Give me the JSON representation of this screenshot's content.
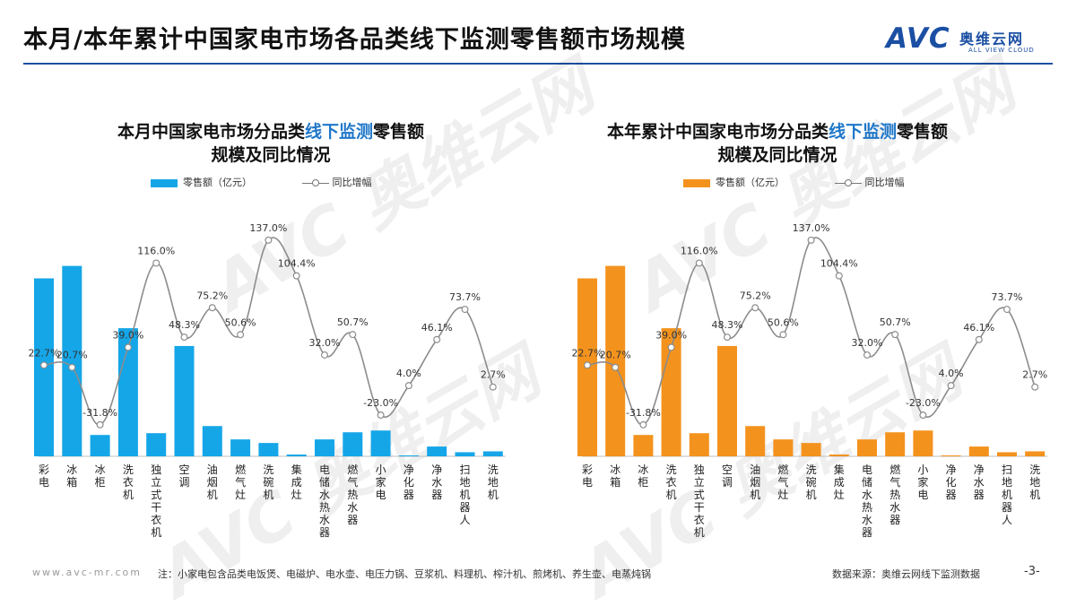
{
  "page": {
    "title": "本月/本年累计中国家电市场各品类线下监测零售额市场规模",
    "logo_text": "AVC",
    "logo_cn": "奥维云网",
    "logo_en": "ALL VIEW CLOUD",
    "watermark": "AVC 奥维云网",
    "footer_url": "www.avc-mr.com",
    "footer_note": "注：小家电包含品类电饭煲、电磁炉、电水壶、电压力锅、豆浆机、料理机、榨汁机、煎烤机、养生壶、电蒸炖锅",
    "footer_source": "数据来源：奥维云网线下监测数据",
    "page_number": "-3-"
  },
  "colors": {
    "monthly_bar": "#15a6e8",
    "ytd_bar": "#f3931e",
    "line": "#8c8c8c",
    "accent_blue": "#1f77c9",
    "brand": "#1b4fa3"
  },
  "chart_data": [
    {
      "type": "bar",
      "title_pre": "本月中国家电市场分品类",
      "title_hl": "线下监测",
      "title_post": "零售额",
      "title_line2": "规模及同比情况",
      "legend_bar": "零售额（亿元）",
      "legend_line": "同比增幅",
      "categories": [
        "彩电",
        "冰箱",
        "冰柜",
        "洗衣机",
        "独立式干衣机",
        "空调",
        "油烟机",
        "燃气灶",
        "洗碗机",
        "集成灶",
        "电储水热水器",
        "燃气热水器",
        "小家电",
        "净化器",
        "净水器",
        "扫地机器人",
        "洗地机"
      ],
      "series": [
        {
          "values": [
            100,
            107,
            12,
            72,
            13,
            62,
            17,
            9.5,
            7.5,
            1,
            9.5,
            13.5,
            14.5,
            0.4,
            5.5,
            2.3,
            2.8
          ]
        },
        {
          "values": [
            22.7,
            20.7,
            -31.8,
            39.0,
            116.0,
            48.3,
            75.2,
            50.6,
            137.0,
            104.4,
            32.0,
            50.7,
            -23.0,
            4.0,
            46.1,
            73.7,
            2.7
          ],
          "labels": [
            "22.7%",
            "20.7%",
            "-31.8%",
            "39.0%",
            "116.0%",
            "48.3%",
            "75.2%",
            "50.6%",
            "137.0%",
            "104.4%",
            "32.0%",
            "50.7%",
            "-23.0%",
            "4.0%",
            "46.1%",
            "73.7%",
            "2.7%"
          ]
        }
      ]
    },
    {
      "type": "bar",
      "title_pre": "本年累计中国家电市场分品类",
      "title_hl": "线下监测",
      "title_post": "零售额",
      "title_line2": "规模及同比情况",
      "legend_bar": "零售额（亿元）",
      "legend_line": "同比增幅",
      "categories": [
        "彩电",
        "冰箱",
        "冰柜",
        "洗衣机",
        "独立式干衣机",
        "空调",
        "油烟机",
        "燃气灶",
        "洗碗机",
        "集成灶",
        "电储水热水器",
        "燃气热水器",
        "小家电",
        "净化器",
        "净水器",
        "扫地机器人",
        "洗地机"
      ],
      "series": [
        {
          "values": [
            100,
            107,
            12,
            72,
            13,
            62,
            17,
            9.5,
            7.5,
            1,
            9.5,
            13.5,
            14.5,
            0.4,
            5.5,
            2.3,
            2.8
          ]
        },
        {
          "values": [
            22.7,
            20.7,
            -31.8,
            39.0,
            116.0,
            48.3,
            75.2,
            50.6,
            137.0,
            104.4,
            32.0,
            50.7,
            -23.0,
            4.0,
            46.1,
            73.7,
            2.7
          ],
          "labels": [
            "22.7%",
            "20.7%",
            "-31.8%",
            "39.0%",
            "116.0%",
            "48.3%",
            "75.2%",
            "50.6%",
            "137.0%",
            "104.4%",
            "32.0%",
            "50.7%",
            "-23.0%",
            "4.0%",
            "46.1%",
            "73.7%",
            "2.7%"
          ]
        }
      ]
    }
  ]
}
